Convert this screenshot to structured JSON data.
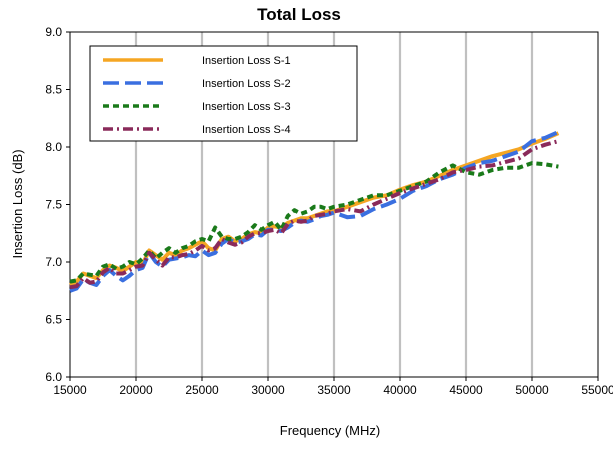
{
  "chart_data": {
    "type": "line",
    "title": "Total Loss",
    "xlabel": "Frequency (MHz)",
    "ylabel": "Insertion Loss (dB)",
    "xlim": [
      15000,
      55000
    ],
    "ylim": [
      6.0,
      9.0
    ],
    "xticks": [
      15000,
      20000,
      25000,
      30000,
      35000,
      40000,
      45000,
      50000,
      55000
    ],
    "yticks": [
      6.0,
      6.5,
      7.0,
      7.5,
      8.0,
      8.5,
      9.0
    ],
    "xtick_labels": [
      "15000",
      "20000",
      "25000",
      "30000",
      "35000",
      "40000",
      "45000",
      "50000",
      "55000"
    ],
    "ytick_labels": [
      "6.0",
      "6.5",
      "7.0",
      "7.5",
      "8.0",
      "8.5",
      "9.0"
    ],
    "grid": "vertical",
    "legend_position": "top-left",
    "series": [
      {
        "name": "Insertion Loss S-1",
        "color": "#f5a623",
        "dash": "solid",
        "x": [
          15000,
          15500,
          16000,
          16500,
          17000,
          17500,
          18000,
          18500,
          19000,
          19500,
          20000,
          20500,
          21000,
          21500,
          22000,
          22500,
          23000,
          23500,
          24000,
          24500,
          25000,
          25500,
          26000,
          26500,
          27000,
          27500,
          28000,
          28500,
          29000,
          29500,
          30000,
          30500,
          31000,
          31500,
          32000,
          32500,
          33000,
          33500,
          34000,
          34500,
          35000,
          36000,
          37000,
          38000,
          39000,
          40000,
          41000,
          42000,
          43000,
          44000,
          45000,
          46000,
          47000,
          48000,
          49000,
          50000,
          51000,
          52000
        ],
        "y": [
          6.8,
          6.83,
          6.9,
          6.88,
          6.86,
          6.93,
          6.97,
          6.95,
          6.92,
          6.96,
          7.0,
          6.98,
          7.1,
          7.06,
          7.02,
          7.08,
          7.06,
          7.1,
          7.12,
          7.15,
          7.18,
          7.12,
          7.1,
          7.2,
          7.22,
          7.18,
          7.2,
          7.24,
          7.26,
          7.25,
          7.3,
          7.31,
          7.3,
          7.34,
          7.36,
          7.38,
          7.38,
          7.4,
          7.42,
          7.44,
          7.44,
          7.48,
          7.52,
          7.56,
          7.58,
          7.63,
          7.67,
          7.7,
          7.75,
          7.8,
          7.84,
          7.88,
          7.92,
          7.95,
          7.98,
          8.03,
          8.07,
          8.12
        ]
      },
      {
        "name": "Insertion Loss S-2",
        "color": "#3a6fe0",
        "dash": "long-dash",
        "x": [
          15000,
          15500,
          16000,
          16500,
          17000,
          17500,
          18000,
          18500,
          19000,
          19500,
          20000,
          20500,
          21000,
          21500,
          22000,
          22500,
          23000,
          23500,
          24000,
          24500,
          25000,
          25500,
          26000,
          26500,
          27000,
          27500,
          28000,
          28500,
          29000,
          29500,
          30000,
          30500,
          31000,
          31500,
          32000,
          32500,
          33000,
          33500,
          34000,
          34500,
          35000,
          36000,
          37000,
          38000,
          39000,
          40000,
          41000,
          42000,
          43000,
          44000,
          45000,
          46000,
          47000,
          48000,
          49000,
          50000,
          51000,
          52000
        ],
        "y": [
          6.75,
          6.77,
          6.85,
          6.82,
          6.8,
          6.88,
          6.93,
          6.88,
          6.84,
          6.88,
          6.93,
          6.95,
          7.08,
          7.0,
          6.96,
          7.02,
          7.03,
          7.04,
          7.06,
          7.05,
          7.1,
          7.06,
          7.08,
          7.16,
          7.2,
          7.17,
          7.18,
          7.2,
          7.24,
          7.23,
          7.28,
          7.28,
          7.27,
          7.3,
          7.34,
          7.36,
          7.35,
          7.37,
          7.4,
          7.41,
          7.43,
          7.39,
          7.4,
          7.46,
          7.5,
          7.55,
          7.62,
          7.66,
          7.72,
          7.76,
          7.82,
          7.86,
          7.88,
          7.92,
          7.96,
          8.05,
          8.08,
          8.13
        ]
      },
      {
        "name": "Insertion Loss S-3",
        "color": "#1a7a1a",
        "dash": "dash",
        "x": [
          15000,
          15500,
          16000,
          16500,
          17000,
          17500,
          18000,
          18500,
          19000,
          19500,
          20000,
          20500,
          21000,
          21500,
          22000,
          22500,
          23000,
          23500,
          24000,
          24500,
          25000,
          25500,
          26000,
          26500,
          27000,
          27500,
          28000,
          28500,
          29000,
          29500,
          30000,
          30500,
          31000,
          31500,
          32000,
          32500,
          33000,
          33500,
          34000,
          34500,
          35000,
          36000,
          37000,
          38000,
          39000,
          40000,
          41000,
          42000,
          43000,
          44000,
          45000,
          46000,
          47000,
          48000,
          49000,
          50000,
          51000,
          52000
        ],
        "y": [
          6.83,
          6.84,
          6.9,
          6.89,
          6.88,
          6.96,
          6.98,
          6.94,
          6.96,
          7.0,
          6.98,
          7.03,
          7.1,
          7.03,
          7.08,
          7.12,
          7.08,
          7.12,
          7.14,
          7.18,
          7.2,
          7.18,
          7.3,
          7.22,
          7.2,
          7.2,
          7.22,
          7.26,
          7.32,
          7.28,
          7.32,
          7.35,
          7.28,
          7.4,
          7.45,
          7.42,
          7.44,
          7.48,
          7.48,
          7.46,
          7.48,
          7.5,
          7.54,
          7.58,
          7.58,
          7.62,
          7.66,
          7.7,
          7.78,
          7.84,
          7.78,
          7.76,
          7.8,
          7.82,
          7.82,
          7.86,
          7.85,
          7.83
        ]
      },
      {
        "name": "Insertion Loss S-4",
        "color": "#8a2a5a",
        "dash": "dash-dot",
        "x": [
          15000,
          15500,
          16000,
          16500,
          17000,
          17500,
          18000,
          18500,
          19000,
          19500,
          20000,
          20500,
          21000,
          21500,
          22000,
          22500,
          23000,
          23500,
          24000,
          24500,
          25000,
          25500,
          26000,
          26500,
          27000,
          27500,
          28000,
          28500,
          29000,
          29500,
          30000,
          30500,
          31000,
          31500,
          32000,
          32500,
          33000,
          33500,
          34000,
          34500,
          35000,
          36000,
          37000,
          38000,
          39000,
          40000,
          41000,
          42000,
          43000,
          44000,
          45000,
          46000,
          47000,
          48000,
          49000,
          50000,
          51000,
          52000
        ],
        "y": [
          6.78,
          6.79,
          6.86,
          6.82,
          6.83,
          6.91,
          6.95,
          6.9,
          6.9,
          6.93,
          6.96,
          6.97,
          7.08,
          7.02,
          6.97,
          7.04,
          7.04,
          7.06,
          7.07,
          7.1,
          7.14,
          7.1,
          7.12,
          7.2,
          7.17,
          7.15,
          7.17,
          7.22,
          7.25,
          7.25,
          7.27,
          7.28,
          7.25,
          7.33,
          7.36,
          7.35,
          7.36,
          7.4,
          7.41,
          7.42,
          7.44,
          7.46,
          7.44,
          7.5,
          7.55,
          7.6,
          7.64,
          7.68,
          7.72,
          7.78,
          7.8,
          7.83,
          7.84,
          7.87,
          7.9,
          7.98,
          8.02,
          8.05
        ]
      }
    ]
  }
}
